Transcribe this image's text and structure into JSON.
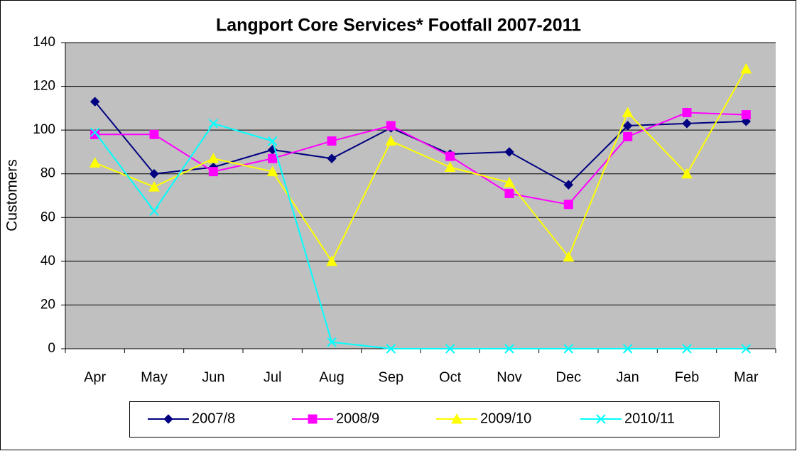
{
  "chart_data": {
    "type": "line",
    "title": "Langport Core Services* Footfall 2007-2011",
    "y_label": "Customers",
    "categories": [
      "Apr",
      "May",
      "Jun",
      "Jul",
      "Aug",
      "Sep",
      "Oct",
      "Nov",
      "Dec",
      "Jan",
      "Feb",
      "Mar"
    ],
    "series": [
      {
        "name": "2007/8",
        "color": "#000080",
        "marker": "diamond",
        "values": [
          113,
          80,
          83,
          91,
          87,
          101,
          89,
          90,
          75,
          102,
          103,
          104
        ]
      },
      {
        "name": "2008/9",
        "color": "#ff00ff",
        "marker": "square",
        "values": [
          98,
          98,
          81,
          87,
          95,
          102,
          88,
          71,
          66,
          97,
          108,
          107
        ]
      },
      {
        "name": "2009/10",
        "color": "#ffff00",
        "marker": "triangle",
        "values": [
          85,
          74,
          87,
          81,
          40,
          95,
          83,
          76,
          42,
          108,
          80,
          128
        ]
      },
      {
        "name": "2010/11",
        "color": "#00ffff",
        "marker": "x",
        "values": [
          99,
          63,
          103,
          95,
          3,
          0,
          0,
          0,
          0,
          0,
          0,
          0
        ]
      }
    ],
    "ylim": [
      0,
      140
    ],
    "yticks": [
      0,
      20,
      40,
      60,
      80,
      100,
      120,
      140
    ],
    "grid": true,
    "legend": "bottom"
  }
}
